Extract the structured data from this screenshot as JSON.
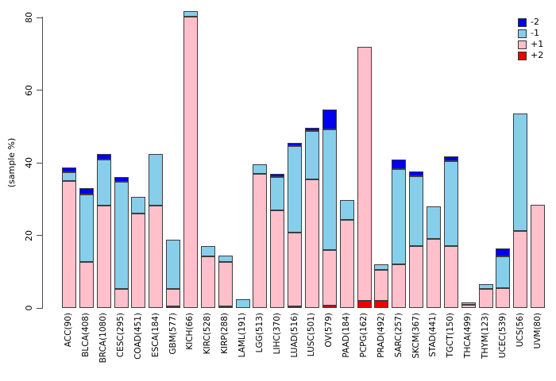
{
  "chart_data": {
    "type": "bar",
    "variant": "stacked-vertical",
    "title": "",
    "xlabel": "",
    "ylabel": "(sample %)",
    "ylim": [
      0,
      80
    ],
    "yticks": [
      0,
      20,
      40,
      60,
      80
    ],
    "grid": false,
    "legend_position": "top-right",
    "legend": [
      {
        "label": "-2",
        "color": "#0000EE"
      },
      {
        "label": "-1",
        "color": "#87CEEB"
      },
      {
        "label": "+1",
        "color": "#FFC0CB"
      },
      {
        "label": "+2",
        "color": "#EE0000"
      }
    ],
    "stack_order_bottom_to_top": [
      "+2",
      "+1",
      "-1",
      "-2"
    ],
    "categories": [
      "ACC(90)",
      "BLCA(408)",
      "BRCA(1080)",
      "CESC(295)",
      "COAD(451)",
      "ESCA(184)",
      "GBM(577)",
      "KICH(66)",
      "KIRC(528)",
      "KIRP(288)",
      "LAML(191)",
      "LGG(513)",
      "LIHC(370)",
      "LUAD(516)",
      "LUSC(501)",
      "OV(579)",
      "PAAD(184)",
      "PCPG(162)",
      "PRAD(492)",
      "SARC(257)",
      "SKCM(367)",
      "STAD(441)",
      "TGCT(150)",
      "THCA(499)",
      "THYM(123)",
      "UCEC(539)",
      "UCS(56)",
      "UVM(80)"
    ],
    "series": [
      {
        "name": "+2",
        "color": "#EE0000",
        "values": [
          0,
          0,
          0,
          0,
          0,
          0,
          0.5,
          0,
          0,
          0.4,
          0,
          0,
          0,
          0.5,
          0,
          0.7,
          0,
          2.0,
          2.0,
          0,
          0,
          0,
          0,
          0,
          0,
          0,
          0,
          0
        ]
      },
      {
        "name": "+1",
        "color": "#FFC0CB",
        "values": [
          35.0,
          12.7,
          28.3,
          5.3,
          26.1,
          28.2,
          4.8,
          80.3,
          14.2,
          12.2,
          0,
          36.9,
          27.0,
          20.2,
          35.4,
          15.3,
          24.3,
          70.0,
          8.6,
          12.0,
          17.1,
          19.0,
          17.1,
          0.8,
          5.2,
          5.4,
          21.2,
          28.5
        ]
      },
      {
        "name": "-1",
        "color": "#87CEEB",
        "values": [
          2.5,
          18.5,
          12.5,
          29.5,
          4.6,
          14.2,
          13.6,
          1.5,
          2.8,
          1.8,
          2.5,
          2.6,
          9.1,
          23.8,
          13.4,
          33.1,
          5.4,
          0,
          1.4,
          26.3,
          19.2,
          9.1,
          23.4,
          0.7,
          1.3,
          8.8,
          32.3,
          0
        ]
      },
      {
        "name": "-2",
        "color": "#0000EE",
        "values": [
          1.3,
          1.8,
          1.5,
          1.2,
          0,
          0,
          0,
          0,
          0,
          0,
          0,
          0,
          0.9,
          0.9,
          0.8,
          5.5,
          0,
          0,
          0,
          2.6,
          1.3,
          0,
          1.3,
          0,
          0,
          2.1,
          0,
          0
        ]
      }
    ],
    "totals_note": "per-bar stacked totals in sample %"
  }
}
